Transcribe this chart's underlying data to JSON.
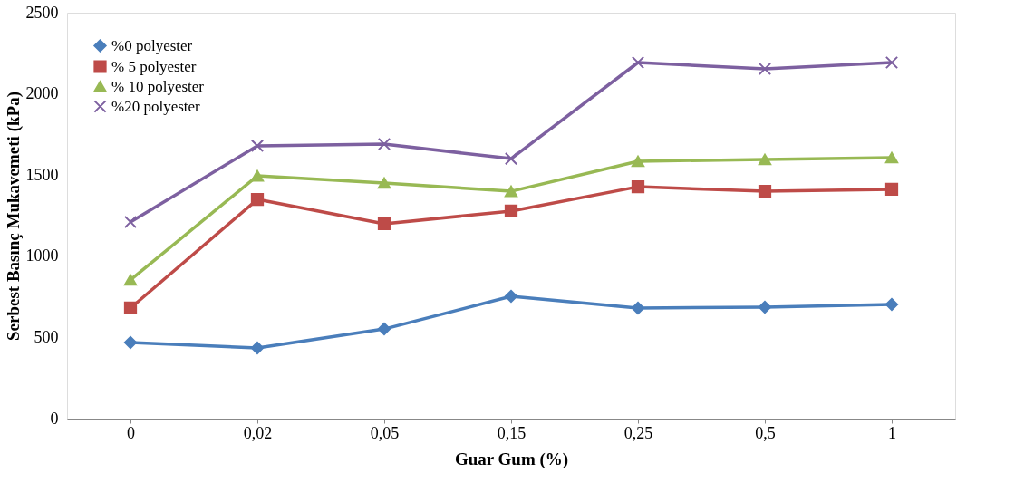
{
  "chart_data": {
    "type": "line",
    "xlabel": "Guar Gum (%)",
    "ylabel": "Serbest Basınç Mukavemeti (kPa)",
    "categories": [
      "0",
      "0,02",
      "0,05",
      "0,15",
      "0,25",
      "0,5",
      "1"
    ],
    "ylim": [
      0,
      2500
    ],
    "yticks": [
      0,
      500,
      1000,
      1500,
      2000,
      2500
    ],
    "grid": false,
    "legend": "top left",
    "series": [
      {
        "name": "%0 polyester",
        "color": "#4a7ebb",
        "marker": "diamond",
        "values": [
          469,
          435,
          552,
          753,
          681,
          686,
          703
        ]
      },
      {
        "name": "% 5 polyester",
        "color": "#be4b48",
        "marker": "square",
        "values": [
          681,
          1350,
          1200,
          1278,
          1428,
          1400,
          1412
        ]
      },
      {
        "name": "% 10 polyester",
        "color": "#98b954",
        "marker": "triangle",
        "values": [
          854,
          1495,
          1451,
          1400,
          1585,
          1596,
          1607
        ]
      },
      {
        "name": "%20 polyester",
        "color": "#7d60a0",
        "marker": "cross",
        "values": [
          1211,
          1680,
          1691,
          1601,
          2193,
          2154,
          2193
        ]
      }
    ]
  }
}
